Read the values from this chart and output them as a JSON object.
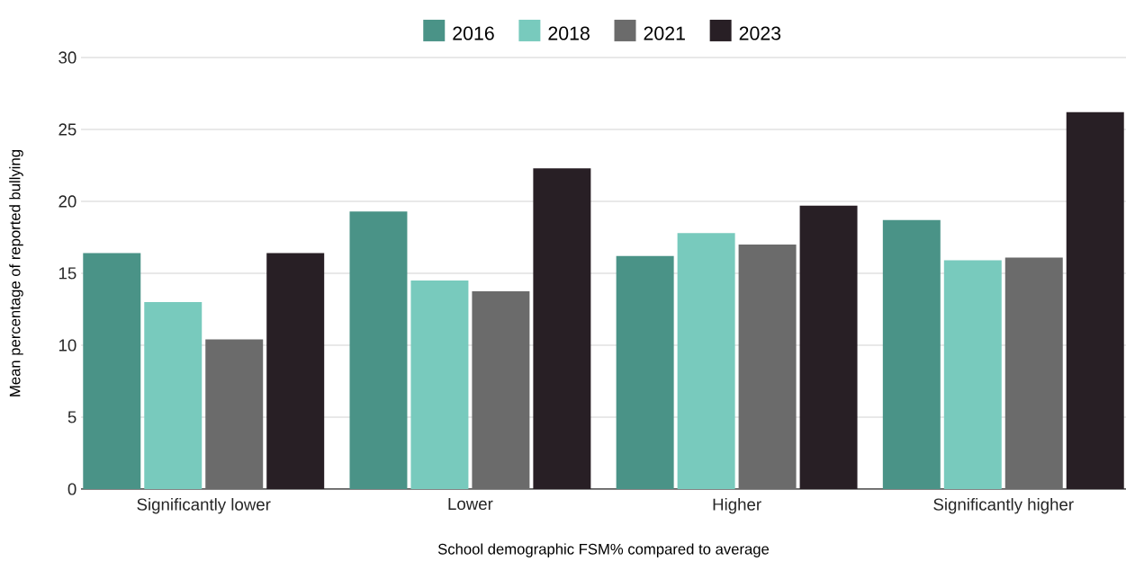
{
  "chart_data": {
    "type": "bar",
    "xlabel": "School demographic FSM% compared to average",
    "ylabel": "Mean percentage of reported bullying",
    "categories": [
      "Significantly lower",
      "Lower",
      "Higher",
      "Significantly higher"
    ],
    "series": [
      {
        "name": "2016",
        "color": "#4a9387",
        "values": [
          16.4,
          19.3,
          16.2,
          18.7
        ]
      },
      {
        "name": "2018",
        "color": "#78cabd",
        "values": [
          13.0,
          14.5,
          17.8,
          15.9
        ]
      },
      {
        "name": "2021",
        "color": "#6b6b6b",
        "values": [
          10.4,
          13.75,
          17.0,
          16.1
        ]
      },
      {
        "name": "2023",
        "color": "#281f25",
        "values": [
          16.4,
          22.3,
          19.7,
          26.2
        ]
      }
    ],
    "ylim": [
      0,
      30
    ],
    "yticks": [
      0,
      5,
      10,
      15,
      20,
      25,
      30
    ],
    "grid": "y",
    "legend": "top"
  }
}
